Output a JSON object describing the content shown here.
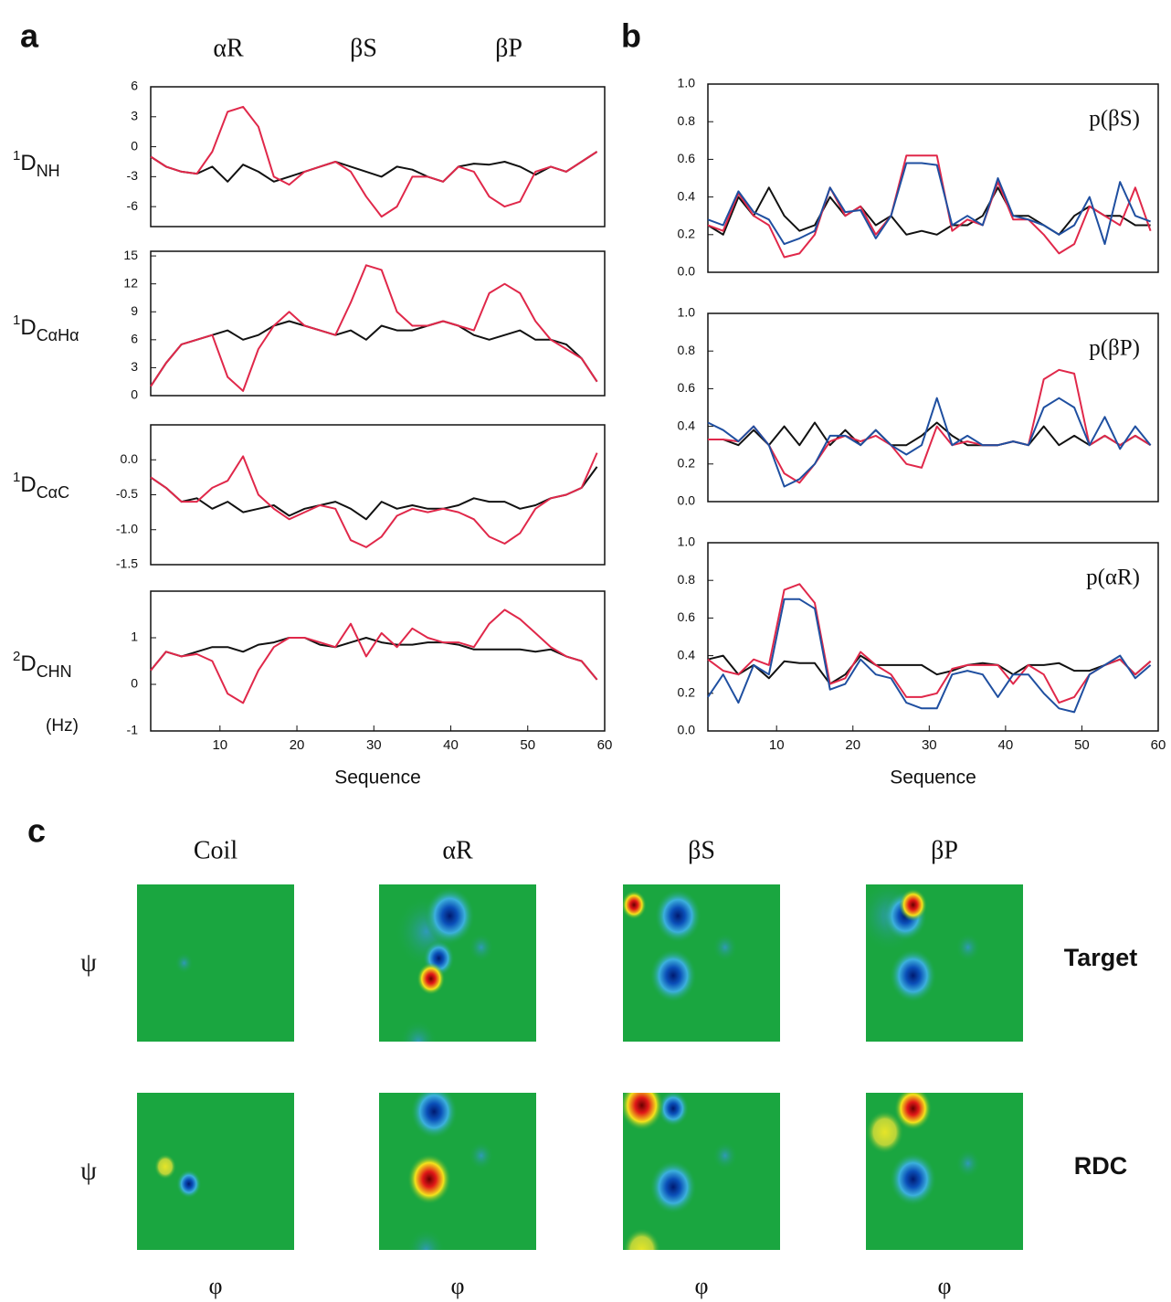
{
  "panel_labels": [
    "a",
    "b",
    "c"
  ],
  "column_headers": [
    "αR",
    "βS",
    "βP"
  ],
  "chart_data": [
    {
      "type": "line",
      "ylabel": [
        "1",
        "D",
        "NH"
      ],
      "x": [
        1,
        3,
        5,
        7,
        9,
        11,
        13,
        15,
        17,
        19,
        21,
        23,
        25,
        27,
        29,
        31,
        33,
        35,
        37,
        39,
        41,
        43,
        45,
        47,
        49,
        51,
        53,
        55,
        57,
        59
      ],
      "xlim": [
        1,
        60
      ],
      "ylim": [
        -8,
        6
      ],
      "yticks": [
        -6,
        -3,
        0,
        3,
        6
      ],
      "series": [
        {
          "color": "#111111",
          "values": [
            -1,
            -2,
            -2.5,
            -2.7,
            -2,
            -3.5,
            -1.8,
            -2.5,
            -3.5,
            -3,
            -2.5,
            -2,
            -1.5,
            -2,
            -2.5,
            -3,
            -2,
            -2.3,
            -3,
            -3.5,
            -2,
            -1.7,
            -1.8,
            -1.5,
            -2,
            -2.8,
            -2,
            -2.5,
            -1.5,
            -0.5
          ]
        },
        {
          "color": "#e0284a",
          "values": [
            -1,
            -2,
            -2.5,
            -2.7,
            -0.5,
            3.5,
            4,
            2,
            -3,
            -3.8,
            -2.5,
            -2,
            -1.5,
            -2.5,
            -5,
            -7,
            -6,
            -3,
            -3,
            -3.5,
            -2,
            -2.5,
            -5,
            -6,
            -5.5,
            -2.5,
            -2,
            -2.5,
            -1.5,
            -0.5
          ]
        }
      ]
    },
    {
      "type": "line",
      "ylabel": [
        "1",
        "D",
        "CαHα"
      ],
      "x": [
        1,
        3,
        5,
        7,
        9,
        11,
        13,
        15,
        17,
        19,
        21,
        23,
        25,
        27,
        29,
        31,
        33,
        35,
        37,
        39,
        41,
        43,
        45,
        47,
        49,
        51,
        53,
        55,
        57,
        59
      ],
      "xlim": [
        1,
        60
      ],
      "ylim": [
        0,
        15.5
      ],
      "yticks": [
        0,
        3,
        6,
        9,
        12,
        15
      ],
      "series": [
        {
          "color": "#111111",
          "values": [
            1,
            3.5,
            5.5,
            6,
            6.5,
            7,
            6,
            6.5,
            7.5,
            8,
            7.5,
            7,
            6.5,
            7,
            6,
            7.5,
            7,
            7,
            7.5,
            8,
            7.5,
            6.5,
            6,
            6.5,
            7,
            6,
            6,
            5.5,
            4,
            1.5
          ]
        },
        {
          "color": "#e0284a",
          "values": [
            1,
            3.5,
            5.5,
            6,
            6.5,
            2,
            0.5,
            5,
            7.5,
            9,
            7.5,
            7,
            6.5,
            10,
            14,
            13.5,
            9,
            7.5,
            7.5,
            8,
            7.5,
            7,
            11,
            12,
            11,
            8,
            6,
            5,
            4,
            1.5
          ]
        }
      ]
    },
    {
      "type": "line",
      "ylabel": [
        "1",
        "D",
        "CαC"
      ],
      "x": [
        1,
        3,
        5,
        7,
        9,
        11,
        13,
        15,
        17,
        19,
        21,
        23,
        25,
        27,
        29,
        31,
        33,
        35,
        37,
        39,
        41,
        43,
        45,
        47,
        49,
        51,
        53,
        55,
        57,
        59
      ],
      "xlim": [
        1,
        60
      ],
      "ylim": [
        -1.5,
        0.5
      ],
      "yticks": [
        {
          "value": -1.5,
          "label": "-1.5"
        },
        {
          "value": -1,
          "label": "-1.0"
        },
        {
          "value": -0.5,
          "label": "-0.5"
        },
        {
          "value": 0,
          "label": "0.0"
        }
      ],
      "series": [
        {
          "color": "#111111",
          "values": [
            -0.25,
            -0.4,
            -0.6,
            -0.55,
            -0.7,
            -0.6,
            -0.75,
            -0.7,
            -0.65,
            -0.8,
            -0.7,
            -0.65,
            -0.6,
            -0.7,
            -0.85,
            -0.6,
            -0.7,
            -0.65,
            -0.7,
            -0.7,
            -0.65,
            -0.55,
            -0.6,
            -0.6,
            -0.7,
            -0.65,
            -0.55,
            -0.5,
            -0.4,
            -0.1
          ]
        },
        {
          "color": "#e0284a",
          "values": [
            -0.25,
            -0.4,
            -0.6,
            -0.6,
            -0.4,
            -0.3,
            0.05,
            -0.5,
            -0.7,
            -0.85,
            -0.75,
            -0.65,
            -0.7,
            -1.15,
            -1.25,
            -1.1,
            -0.8,
            -0.7,
            -0.75,
            -0.7,
            -0.75,
            -0.85,
            -1.1,
            -1.2,
            -1.05,
            -0.7,
            -0.55,
            -0.5,
            -0.4,
            0.1
          ]
        }
      ]
    },
    {
      "type": "line",
      "ylabel": [
        "2",
        "D",
        "CHN"
      ],
      "yunit": "(Hz)",
      "xlabel": "Sequence",
      "x": [
        1,
        3,
        5,
        7,
        9,
        11,
        13,
        15,
        17,
        19,
        21,
        23,
        25,
        27,
        29,
        31,
        33,
        35,
        37,
        39,
        41,
        43,
        45,
        47,
        49,
        51,
        53,
        55,
        57,
        59
      ],
      "xlim": [
        1,
        60
      ],
      "ylim": [
        -1,
        2
      ],
      "yticks": [
        -1,
        0,
        1
      ],
      "xticks": [
        10,
        20,
        30,
        40,
        50,
        60
      ],
      "series": [
        {
          "color": "#111111",
          "values": [
            0.3,
            0.7,
            0.6,
            0.7,
            0.8,
            0.8,
            0.7,
            0.85,
            0.9,
            1,
            1,
            0.85,
            0.8,
            0.9,
            1,
            0.9,
            0.85,
            0.85,
            0.9,
            0.9,
            0.85,
            0.75,
            0.75,
            0.75,
            0.75,
            0.7,
            0.75,
            0.6,
            0.5,
            0.1
          ]
        },
        {
          "color": "#e0284a",
          "values": [
            0.3,
            0.7,
            0.6,
            0.65,
            0.5,
            -0.2,
            -0.4,
            0.3,
            0.8,
            1,
            1,
            0.9,
            0.8,
            1.3,
            0.6,
            1.1,
            0.8,
            1.2,
            1,
            0.9,
            0.9,
            0.8,
            1.3,
            1.6,
            1.4,
            1.1,
            0.8,
            0.6,
            0.5,
            0.1
          ]
        }
      ]
    },
    {
      "type": "line",
      "annotation": "p(βS)",
      "x": [
        1,
        3,
        5,
        7,
        9,
        11,
        13,
        15,
        17,
        19,
        21,
        23,
        25,
        27,
        29,
        31,
        33,
        35,
        37,
        39,
        41,
        43,
        45,
        47,
        49,
        51,
        53,
        55,
        57,
        59
      ],
      "xlim": [
        1,
        60
      ],
      "ylim": [
        0,
        1
      ],
      "yticks": [
        {
          "value": 0,
          "label": "0.0"
        },
        {
          "value": 0.2,
          "label": "0.2"
        },
        {
          "value": 0.4,
          "label": "0.4"
        },
        {
          "value": 0.6,
          "label": "0.6"
        },
        {
          "value": 0.8,
          "label": "0.8"
        },
        {
          "value": 1,
          "label": "1.0"
        }
      ],
      "series": [
        {
          "color": "#111111",
          "values": [
            0.25,
            0.2,
            0.4,
            0.3,
            0.45,
            0.3,
            0.22,
            0.25,
            0.4,
            0.3,
            0.35,
            0.25,
            0.3,
            0.2,
            0.22,
            0.2,
            0.25,
            0.25,
            0.3,
            0.45,
            0.3,
            0.3,
            0.25,
            0.2,
            0.3,
            0.35,
            0.3,
            0.3,
            0.25,
            0.25
          ]
        },
        {
          "color": "#e0284a",
          "values": [
            0.25,
            0.22,
            0.42,
            0.3,
            0.25,
            0.08,
            0.1,
            0.2,
            0.45,
            0.3,
            0.35,
            0.2,
            0.3,
            0.62,
            0.62,
            0.62,
            0.22,
            0.28,
            0.25,
            0.48,
            0.28,
            0.28,
            0.2,
            0.1,
            0.15,
            0.35,
            0.3,
            0.25,
            0.45,
            0.22
          ]
        },
        {
          "color": "#1f4fa0",
          "values": [
            0.28,
            0.25,
            0.43,
            0.32,
            0.28,
            0.15,
            0.18,
            0.22,
            0.45,
            0.32,
            0.33,
            0.18,
            0.3,
            0.58,
            0.58,
            0.57,
            0.25,
            0.3,
            0.25,
            0.5,
            0.3,
            0.28,
            0.25,
            0.2,
            0.25,
            0.4,
            0.15,
            0.48,
            0.3,
            0.27
          ]
        }
      ]
    },
    {
      "type": "line",
      "annotation": "p(βP)",
      "x": [
        1,
        3,
        5,
        7,
        9,
        11,
        13,
        15,
        17,
        19,
        21,
        23,
        25,
        27,
        29,
        31,
        33,
        35,
        37,
        39,
        41,
        43,
        45,
        47,
        49,
        51,
        53,
        55,
        57,
        59
      ],
      "xlim": [
        1,
        60
      ],
      "ylim": [
        0,
        1
      ],
      "yticks": [
        {
          "value": 0,
          "label": "0.0"
        },
        {
          "value": 0.2,
          "label": "0.2"
        },
        {
          "value": 0.4,
          "label": "0.4"
        },
        {
          "value": 0.6,
          "label": "0.6"
        },
        {
          "value": 0.8,
          "label": "0.8"
        },
        {
          "value": 1,
          "label": "1.0"
        }
      ],
      "series": [
        {
          "color": "#111111",
          "values": [
            0.33,
            0.33,
            0.3,
            0.38,
            0.3,
            0.4,
            0.3,
            0.42,
            0.3,
            0.38,
            0.3,
            0.38,
            0.3,
            0.3,
            0.35,
            0.42,
            0.35,
            0.3,
            0.3,
            0.3,
            0.32,
            0.3,
            0.4,
            0.3,
            0.35,
            0.3,
            0.35,
            0.3,
            0.35,
            0.3
          ]
        },
        {
          "color": "#e0284a",
          "values": [
            0.33,
            0.33,
            0.32,
            0.4,
            0.3,
            0.15,
            0.1,
            0.2,
            0.32,
            0.35,
            0.32,
            0.35,
            0.3,
            0.2,
            0.18,
            0.4,
            0.3,
            0.32,
            0.3,
            0.3,
            0.32,
            0.3,
            0.65,
            0.7,
            0.68,
            0.3,
            0.35,
            0.3,
            0.35,
            0.3
          ]
        },
        {
          "color": "#1f4fa0",
          "values": [
            0.42,
            0.38,
            0.32,
            0.4,
            0.3,
            0.08,
            0.12,
            0.2,
            0.35,
            0.35,
            0.3,
            0.38,
            0.3,
            0.25,
            0.3,
            0.55,
            0.3,
            0.35,
            0.3,
            0.3,
            0.32,
            0.3,
            0.5,
            0.55,
            0.5,
            0.3,
            0.45,
            0.28,
            0.4,
            0.3
          ]
        }
      ]
    },
    {
      "type": "line",
      "annotation": "p(αR)",
      "xlabel": "Sequence",
      "x": [
        1,
        3,
        5,
        7,
        9,
        11,
        13,
        15,
        17,
        19,
        21,
        23,
        25,
        27,
        29,
        31,
        33,
        35,
        37,
        39,
        41,
        43,
        45,
        47,
        49,
        51,
        53,
        55,
        57,
        59
      ],
      "xlim": [
        1,
        60
      ],
      "ylim": [
        0,
        1
      ],
      "xticks": [
        10,
        20,
        30,
        40,
        50,
        60
      ],
      "yticks": [
        {
          "value": 0,
          "label": "0.0"
        },
        {
          "value": 0.2,
          "label": "0.2"
        },
        {
          "value": 0.4,
          "label": "0.4"
        },
        {
          "value": 0.6,
          "label": "0.6"
        },
        {
          "value": 0.8,
          "label": "0.8"
        },
        {
          "value": 1,
          "label": "1.0"
        }
      ],
      "series": [
        {
          "color": "#111111",
          "values": [
            0.38,
            0.4,
            0.3,
            0.35,
            0.28,
            0.37,
            0.36,
            0.36,
            0.25,
            0.3,
            0.4,
            0.35,
            0.35,
            0.35,
            0.35,
            0.3,
            0.32,
            0.35,
            0.36,
            0.35,
            0.3,
            0.35,
            0.35,
            0.36,
            0.32,
            0.32,
            0.35,
            0.38,
            0.3,
            0.37
          ]
        },
        {
          "color": "#e0284a",
          "values": [
            0.38,
            0.32,
            0.3,
            0.38,
            0.35,
            0.75,
            0.78,
            0.68,
            0.25,
            0.28,
            0.42,
            0.35,
            0.3,
            0.18,
            0.18,
            0.2,
            0.33,
            0.35,
            0.35,
            0.35,
            0.25,
            0.35,
            0.3,
            0.15,
            0.18,
            0.3,
            0.35,
            0.38,
            0.3,
            0.37
          ]
        },
        {
          "color": "#1f4fa0",
          "values": [
            0.18,
            0.3,
            0.15,
            0.35,
            0.3,
            0.7,
            0.7,
            0.65,
            0.22,
            0.25,
            0.38,
            0.3,
            0.28,
            0.15,
            0.12,
            0.12,
            0.3,
            0.32,
            0.3,
            0.18,
            0.3,
            0.3,
            0.2,
            0.12,
            0.1,
            0.3,
            0.35,
            0.4,
            0.28,
            0.35
          ]
        }
      ]
    }
  ],
  "heatmaps": {
    "columns": [
      "Coil",
      "αR",
      "βS",
      "βP"
    ],
    "rows": [
      "Target",
      "RDC"
    ],
    "ylabel": "ψ",
    "xlabel": "φ"
  }
}
